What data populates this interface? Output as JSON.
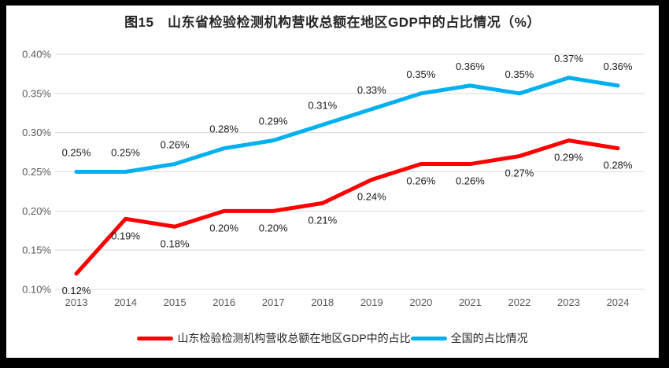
{
  "title": "图15　山东省检验检测机构营收总额在地区GDP中的占比情况（%）",
  "chart_data": {
    "type": "line",
    "x": [
      "2013",
      "2014",
      "2015",
      "2016",
      "2017",
      "2018",
      "2019",
      "2020",
      "2021",
      "2022",
      "2023",
      "2024"
    ],
    "series": [
      {
        "name": "山东检验检测机构营收总额在地区GDP中的占比",
        "key": "shandong",
        "color": "#FF0000",
        "values": [
          0.12,
          0.19,
          0.18,
          0.2,
          0.2,
          0.21,
          0.24,
          0.26,
          0.26,
          0.27,
          0.29,
          0.28
        ],
        "labels": [
          "0.12%",
          "0.19%",
          "0.18%",
          "0.20%",
          "0.20%",
          "0.21%",
          "0.24%",
          "0.26%",
          "0.26%",
          "0.27%",
          "0.29%",
          "0.28%"
        ],
        "label_position": "below"
      },
      {
        "name": "全国的占比情况",
        "key": "national",
        "color": "#00B0F0",
        "values": [
          0.25,
          0.25,
          0.26,
          0.28,
          0.29,
          0.31,
          0.33,
          0.35,
          0.36,
          0.35,
          0.37,
          0.36
        ],
        "labels": [
          "0.25%",
          "0.25%",
          "0.26%",
          "0.28%",
          "0.29%",
          "0.31%",
          "0.33%",
          "0.35%",
          "0.36%",
          "0.35%",
          "0.37%",
          "0.36%"
        ],
        "label_position": "above"
      }
    ],
    "ylim": [
      0.1,
      0.4
    ],
    "ytick_step": 0.05,
    "ytick_labels": [
      "0.10%",
      "0.15%",
      "0.20%",
      "0.25%",
      "0.30%",
      "0.35%",
      "0.40%"
    ],
    "xlabel": "",
    "ylabel": "",
    "grid": true,
    "legend_position": "bottom"
  },
  "colors": {
    "frame": "#000000",
    "background": "#FFFFFF",
    "gridline": "#D9D9D9",
    "axis_text": "#595959",
    "data_label_text": "#1A1A1A",
    "title_text": "#262626"
  }
}
